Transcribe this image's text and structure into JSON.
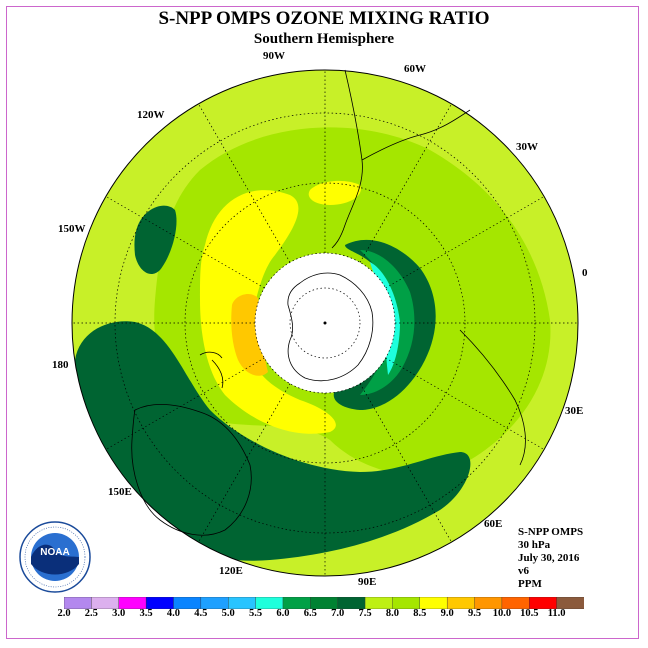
{
  "title": "S-NPP OMPS OZONE MIXING RATIO",
  "subtitle": "Southern Hemisphere",
  "longitude_labels": {
    "lon_90w": "90W",
    "lon_60w": "60W",
    "lon_30w": "30W",
    "lon_0": "0",
    "lon_30e": "30E",
    "lon_60e": "60E",
    "lon_90e": "90E",
    "lon_120e": "120E",
    "lon_150e": "150E",
    "lon_180": "180",
    "lon_150w": "150W",
    "lon_120w": "120W"
  },
  "info": {
    "instrument": "S-NPP OMPS",
    "level": "30 hPa",
    "date": "July 30, 2016",
    "version": "v6",
    "units": "PPM"
  },
  "logo": {
    "text": "NOAA",
    "ring_text": "NATIONAL OCEANIC AND ATMOSPHERIC ADMINISTRATION · U.S. DEPARTMENT OF COMMERCE"
  },
  "colorbar": {
    "colors": [
      "#b388ee",
      "#dcb0ee",
      "#ff00ff",
      "#0000ff",
      "#0a84ff",
      "#1ea0ff",
      "#28c4ff",
      "#1effdc",
      "#00a046",
      "#008232",
      "#006432",
      "#bef014",
      "#a5e600",
      "#ffff00",
      "#ffc800",
      "#ff9600",
      "#ff6400",
      "#ff0000",
      "#8b5a3c"
    ],
    "ticks": [
      "2.0",
      "2.5",
      "3.0",
      "3.5",
      "4.0",
      "4.5",
      "5.0",
      "5.5",
      "6.0",
      "6.5",
      "7.0",
      "7.5",
      "8.0",
      "8.5",
      "9.0",
      "9.5",
      "10.0",
      "10.5",
      "11.0"
    ]
  },
  "field_colors": {
    "background_level": "#c8f028",
    "level_8": "#a5e600",
    "level_85": "#ffff00",
    "level_9": "#ffc800",
    "level_7": "#006432",
    "level_65": "#008232",
    "level_6": "#00a046",
    "level_55": "#1effdc",
    "pole_gap": "#ffffff"
  }
}
